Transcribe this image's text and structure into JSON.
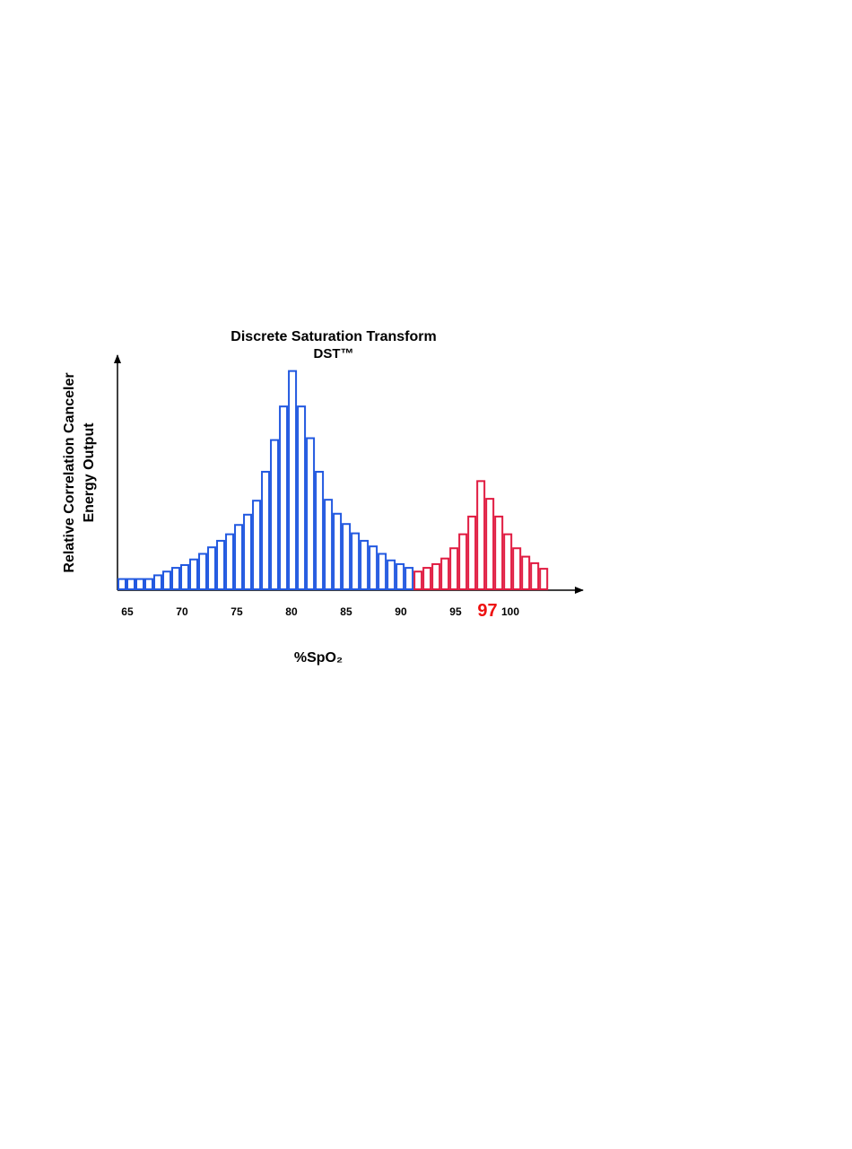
{
  "chart_data": {
    "type": "histogram",
    "title": "Discrete Saturation Transform",
    "subtitle": "DST™",
    "y_label": [
      "Relative Correlation Canceler",
      "Energy Output"
    ],
    "x_label": "%SpO₂",
    "bins": [
      64.1,
      64.92,
      65.74,
      66.56,
      67.38,
      68.2,
      69.02,
      69.84,
      70.66,
      71.48,
      72.3,
      73.12,
      73.94,
      74.76,
      75.58,
      76.4,
      77.22,
      78.04,
      78.86,
      79.68,
      80.5,
      81.32,
      82.14,
      82.96,
      83.78,
      84.6,
      85.42,
      86.24,
      87.06,
      87.88,
      88.7,
      89.52,
      90.34,
      91.16,
      91.98,
      92.8,
      93.62,
      94.44,
      95.26,
      96.08,
      96.9,
      97.72,
      98.54,
      99.36,
      100.18,
      101,
      101.82,
      102.64,
      103.46
    ],
    "values": [
      11,
      11,
      11,
      11,
      15,
      19,
      23,
      26,
      32,
      38,
      45,
      52,
      59,
      69,
      80,
      95,
      126,
      160,
      196,
      234,
      196,
      162,
      126,
      96,
      81,
      70,
      60,
      52,
      46,
      38,
      31,
      27,
      23,
      19,
      23,
      27,
      33,
      44,
      59,
      78,
      116,
      97,
      78,
      59,
      44,
      35,
      28,
      22
    ],
    "colors": [
      "#2158e0",
      "#2158e0",
      "#2158e0",
      "#2158e0",
      "#2158e0",
      "#2158e0",
      "#2158e0",
      "#2158e0",
      "#2158e0",
      "#2158e0",
      "#2158e0",
      "#2158e0",
      "#2158e0",
      "#2158e0",
      "#2158e0",
      "#2158e0",
      "#2158e0",
      "#2158e0",
      "#2158e0",
      "#2158e0",
      "#2158e0",
      "#2158e0",
      "#2158e0",
      "#2158e0",
      "#2158e0",
      "#2158e0",
      "#2158e0",
      "#2158e0",
      "#2158e0",
      "#2158e0",
      "#2158e0",
      "#2158e0",
      "#2158e0",
      "#e01a40",
      "#e01a40",
      "#e01a40",
      "#e01a40",
      "#e01a40",
      "#e01a40",
      "#e01a40",
      "#e01a40",
      "#e01a40",
      "#e01a40",
      "#e01a40",
      "#e01a40",
      "#e01a40",
      "#e01a40",
      "#e01a40"
    ],
    "xlim": [
      64.1,
      106.64
    ],
    "xticks": [
      65,
      70,
      75,
      80,
      85,
      90,
      95,
      100
    ],
    "ylim": [
      0,
      250
    ],
    "annotations": [
      {
        "text": "97",
        "x": 97,
        "color": "#ee1111"
      }
    ]
  }
}
